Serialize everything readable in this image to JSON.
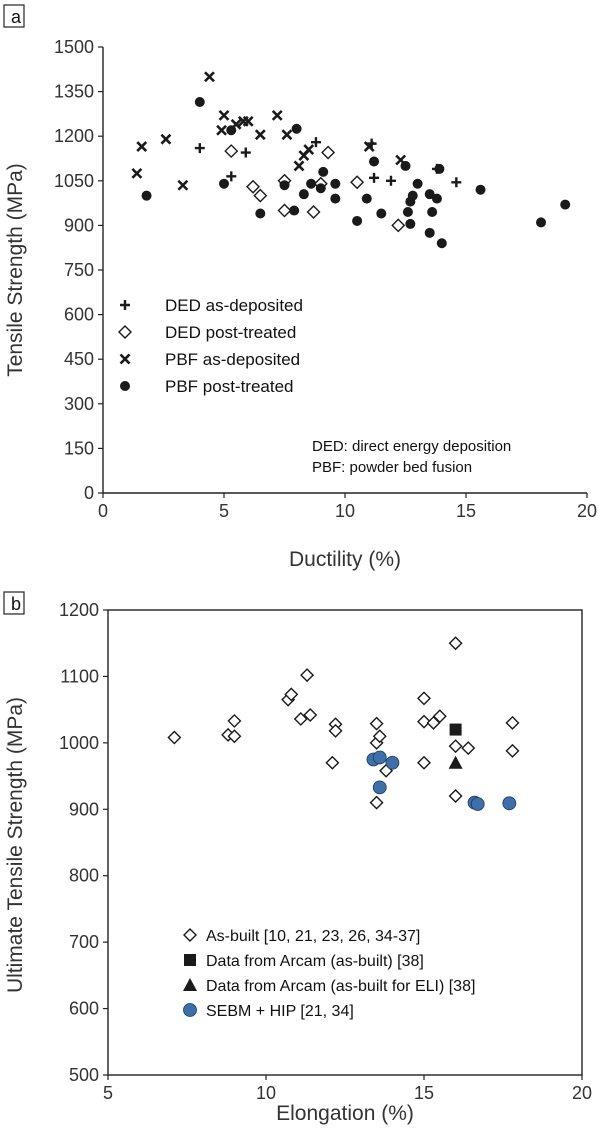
{
  "chart_data": [
    {
      "panel_label": "a",
      "type": "scatter",
      "xlabel": "Ductility (%)",
      "ylabel": "Tensile Strength (MPa)",
      "xlim": [
        0,
        20
      ],
      "ylim": [
        0,
        1500
      ],
      "xticks": [
        "0",
        "5",
        "10",
        "15",
        "20"
      ],
      "yticks": [
        "0",
        "150",
        "300",
        "450",
        "600",
        "750",
        "900",
        "1050",
        "1200",
        "1350",
        "1500"
      ],
      "legend_position": "left-center",
      "notes": [
        "DED: direct energy deposition",
        "PBF: powder bed fusion"
      ],
      "series": [
        {
          "name": "DED as-deposited",
          "marker": "plus",
          "points": [
            [
              4.0,
              1160
            ],
            [
              5.3,
              1065
            ],
            [
              5.9,
              1145
            ],
            [
              7.5,
              1045
            ],
            [
              8.8,
              1180
            ],
            [
              11.1,
              1175
            ],
            [
              11.9,
              1050
            ],
            [
              13.8,
              1090
            ],
            [
              14.6,
              1045
            ],
            [
              11.2,
              1060
            ]
          ]
        },
        {
          "name": "DED post-treated",
          "marker": "diamond",
          "points": [
            [
              5.3,
              1150
            ],
            [
              6.2,
              1030
            ],
            [
              6.5,
              1000
            ],
            [
              7.5,
              1050
            ],
            [
              7.5,
              950
            ],
            [
              8.7,
              945
            ],
            [
              9.3,
              1145
            ],
            [
              10.5,
              1045
            ],
            [
              12.2,
              900
            ],
            [
              9.0,
              1040
            ]
          ]
        },
        {
          "name": "PBF as-deposited",
          "marker": "x",
          "points": [
            [
              1.4,
              1075
            ],
            [
              1.6,
              1165
            ],
            [
              2.6,
              1190
            ],
            [
              3.3,
              1035
            ],
            [
              4.4,
              1400
            ],
            [
              4.9,
              1220
            ],
            [
              5.0,
              1270
            ],
            [
              5.5,
              1240
            ],
            [
              5.8,
              1250
            ],
            [
              6.0,
              1250
            ],
            [
              6.5,
              1205
            ],
            [
              7.2,
              1270
            ],
            [
              7.6,
              1205
            ],
            [
              8.1,
              1100
            ],
            [
              8.3,
              1135
            ],
            [
              8.5,
              1155
            ],
            [
              11.0,
              1165
            ],
            [
              12.3,
              1120
            ]
          ]
        },
        {
          "name": "PBF post-treated",
          "marker": "circle",
          "points": [
            [
              1.8,
              1000
            ],
            [
              4.0,
              1315
            ],
            [
              5.0,
              1040
            ],
            [
              5.3,
              1220
            ],
            [
              6.5,
              940
            ],
            [
              7.5,
              1035
            ],
            [
              7.9,
              950
            ],
            [
              8.0,
              1225
            ],
            [
              8.3,
              1005
            ],
            [
              8.6,
              1040
            ],
            [
              9.0,
              1025
            ],
            [
              9.1,
              1080
            ],
            [
              9.6,
              990
            ],
            [
              9.6,
              1040
            ],
            [
              10.5,
              915
            ],
            [
              10.9,
              990
            ],
            [
              11.2,
              1115
            ],
            [
              11.5,
              940
            ],
            [
              12.5,
              1100
            ],
            [
              12.6,
              945
            ],
            [
              12.7,
              905
            ],
            [
              12.8,
              1000
            ],
            [
              13.0,
              1040
            ],
            [
              13.5,
              1005
            ],
            [
              13.5,
              875
            ],
            [
              13.6,
              945
            ],
            [
              13.8,
              990
            ],
            [
              13.9,
              1090
            ],
            [
              14.0,
              840
            ],
            [
              15.6,
              1020
            ],
            [
              18.1,
              910
            ],
            [
              19.1,
              970
            ],
            [
              12.7,
              980
            ]
          ]
        }
      ]
    },
    {
      "panel_label": "b",
      "type": "scatter",
      "xlabel": "Elongation (%)",
      "ylabel": "Ultimate Tensile Strength (MPa)",
      "xlim": [
        5,
        20
      ],
      "ylim": [
        500,
        1200
      ],
      "xticks": [
        "5",
        "10",
        "15",
        "20"
      ],
      "yticks": [
        "500",
        "600",
        "700",
        "800",
        "900",
        "1000",
        "1100",
        "1200"
      ],
      "legend_position": "bottom-left",
      "series": [
        {
          "name": "As-built [10, 21, 23, 26, 34-37]",
          "marker": "diamond",
          "points": [
            [
              7.1,
              1008
            ],
            [
              8.8,
              1012
            ],
            [
              9.0,
              1010
            ],
            [
              9.0,
              1033
            ],
            [
              10.7,
              1065
            ],
            [
              10.8,
              1073
            ],
            [
              11.1,
              1036
            ],
            [
              11.3,
              1102
            ],
            [
              11.4,
              1042
            ],
            [
              12.1,
              970
            ],
            [
              12.2,
              1028
            ],
            [
              12.2,
              1018
            ],
            [
              13.5,
              1029
            ],
            [
              13.5,
              1000
            ],
            [
              13.5,
              910
            ],
            [
              13.6,
              1010
            ],
            [
              13.8,
              958
            ],
            [
              15.0,
              1067
            ],
            [
              15.0,
              1032
            ],
            [
              15.0,
              970
            ],
            [
              15.3,
              1030
            ],
            [
              15.5,
              1040
            ],
            [
              16.0,
              1150
            ],
            [
              16.0,
              995
            ],
            [
              16.0,
              920
            ],
            [
              16.4,
              992
            ],
            [
              17.8,
              1030
            ],
            [
              17.8,
              988
            ]
          ]
        },
        {
          "name": "Data from Arcam (as-built) [38]",
          "marker": "square",
          "points": [
            [
              16.0,
              1020
            ]
          ]
        },
        {
          "name": "Data from Arcam (as-built for ELI) [38]",
          "marker": "triangle",
          "points": [
            [
              16.0,
              970
            ]
          ]
        },
        {
          "name": "SEBM + HIP [21, 34]",
          "marker": "filled-circle",
          "points": [
            [
              13.4,
              975
            ],
            [
              13.6,
              978
            ],
            [
              13.6,
              933
            ],
            [
              14.0,
              970
            ],
            [
              16.6,
              910
            ],
            [
              16.7,
              908
            ],
            [
              17.7,
              909
            ]
          ]
        }
      ]
    }
  ],
  "colors": {
    "axis": "#222222",
    "marker": "#1a1a1a",
    "sebm_fill": "#3f6fa8"
  }
}
